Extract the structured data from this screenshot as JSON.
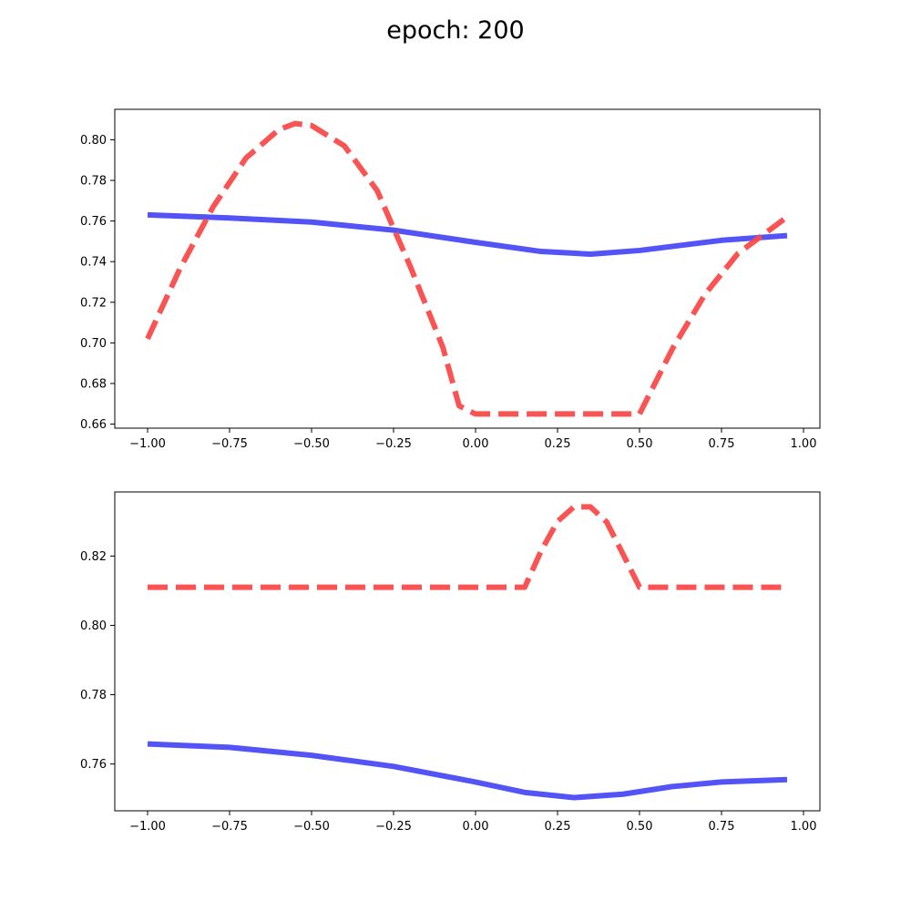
{
  "title": "epoch: 200",
  "chart_data": [
    {
      "type": "line",
      "xlim": [
        -1.1,
        1.05
      ],
      "ylim": [
        0.658,
        0.815
      ],
      "xticks": [
        -1.0,
        -0.75,
        -0.5,
        -0.25,
        0.0,
        0.25,
        0.5,
        0.75,
        1.0
      ],
      "xtick_labels": [
        "−1.00",
        "−0.75",
        "−0.50",
        "−0.25",
        "0.00",
        "0.25",
        "0.50",
        "0.75",
        "1.00"
      ],
      "yticks": [
        0.66,
        0.68,
        0.7,
        0.72,
        0.74,
        0.76,
        0.78,
        0.8
      ],
      "ytick_labels": [
        "0.66",
        "0.68",
        "0.70",
        "0.72",
        "0.74",
        "0.76",
        "0.78",
        "0.80"
      ],
      "grid": false,
      "series": [
        {
          "color": "#4a4af5",
          "style": "solid",
          "points": [
            [
              -1.0,
              0.763
            ],
            [
              -0.75,
              0.7615
            ],
            [
              -0.5,
              0.7595
            ],
            [
              -0.25,
              0.7555
            ],
            [
              0.0,
              0.7495
            ],
            [
              0.2,
              0.745
            ],
            [
              0.35,
              0.7437
            ],
            [
              0.5,
              0.7455
            ],
            [
              0.75,
              0.7505
            ],
            [
              0.95,
              0.7528
            ]
          ]
        },
        {
          "color": "#f94a4a",
          "style": "dashed",
          "points": [
            [
              -1.0,
              0.702
            ],
            [
              -0.9,
              0.737
            ],
            [
              -0.8,
              0.767
            ],
            [
              -0.7,
              0.791
            ],
            [
              -0.6,
              0.805
            ],
            [
              -0.55,
              0.808
            ],
            [
              -0.5,
              0.807
            ],
            [
              -0.4,
              0.797
            ],
            [
              -0.3,
              0.775
            ],
            [
              -0.2,
              0.738
            ],
            [
              -0.1,
              0.698
            ],
            [
              -0.05,
              0.669
            ],
            [
              0.0,
              0.665
            ],
            [
              0.5,
              0.665
            ],
            [
              0.6,
              0.697
            ],
            [
              0.7,
              0.724
            ],
            [
              0.8,
              0.744
            ],
            [
              0.9,
              0.756
            ],
            [
              0.95,
              0.762
            ]
          ]
        }
      ]
    },
    {
      "type": "line",
      "xlim": [
        -1.1,
        1.05
      ],
      "ylim": [
        0.7465,
        0.8385
      ],
      "xticks": [
        -1.0,
        -0.75,
        -0.5,
        -0.25,
        0.0,
        0.25,
        0.5,
        0.75,
        1.0
      ],
      "xtick_labels": [
        "−1.00",
        "−0.75",
        "−0.50",
        "−0.25",
        "0.00",
        "0.25",
        "0.50",
        "0.75",
        "1.00"
      ],
      "yticks": [
        0.76,
        0.78,
        0.8,
        0.82
      ],
      "ytick_labels": [
        "0.76",
        "0.78",
        "0.80",
        "0.82"
      ],
      "grid": false,
      "series": [
        {
          "color": "#4a4af5",
          "style": "solid",
          "points": [
            [
              -1.0,
              0.7658
            ],
            [
              -0.75,
              0.7648
            ],
            [
              -0.5,
              0.7625
            ],
            [
              -0.25,
              0.7593
            ],
            [
              0.0,
              0.7548
            ],
            [
              0.15,
              0.7518
            ],
            [
              0.3,
              0.7503
            ],
            [
              0.45,
              0.7513
            ],
            [
              0.6,
              0.7535
            ],
            [
              0.75,
              0.7548
            ],
            [
              0.95,
              0.7555
            ]
          ]
        },
        {
          "color": "#f94a4a",
          "style": "dashed",
          "points": [
            [
              -1.0,
              0.811
            ],
            [
              0.15,
              0.811
            ],
            [
              0.2,
              0.8215
            ],
            [
              0.25,
              0.83
            ],
            [
              0.3,
              0.8342
            ],
            [
              0.35,
              0.8342
            ],
            [
              0.4,
              0.8298
            ],
            [
              0.45,
              0.8205
            ],
            [
              0.5,
              0.811
            ],
            [
              0.95,
              0.811
            ]
          ]
        }
      ]
    }
  ]
}
